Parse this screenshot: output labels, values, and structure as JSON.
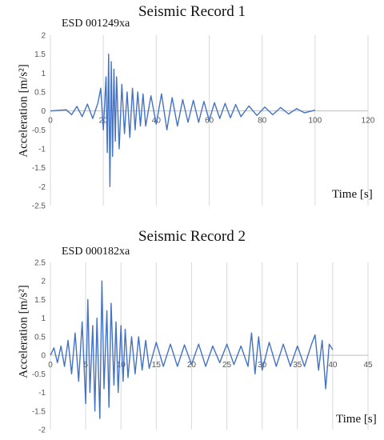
{
  "charts": [
    {
      "title": "Seismic Record 1",
      "code": "ESD 001249xa",
      "ylabel": "Acceleration [m/s²]",
      "xlabel": "Time [s]"
    },
    {
      "title": "Seismic Record 2",
      "code": "ESD 000182xa",
      "ylabel": "Acceleration [m/s²]",
      "xlabel": "Time [s]"
    }
  ],
  "colors": {
    "series": "#4472c4",
    "grid": "#d9d9d9",
    "axis": "#bfbfbf"
  },
  "chart_data": [
    {
      "type": "line",
      "title": "Seismic Record 1",
      "xlabel": "Time [s]",
      "ylabel": "Acceleration [m/s²]",
      "xlim": [
        0,
        120
      ],
      "ylim": [
        -2.5,
        2
      ],
      "xticks": [
        0,
        20,
        40,
        60,
        80,
        100,
        120
      ],
      "yticks": [
        -2.5,
        -2,
        -1.5,
        -1,
        -0.5,
        0,
        0.5,
        1,
        1.5,
        2
      ],
      "grid": "vertical",
      "series": [
        {
          "x": [
            0,
            6,
            8,
            10,
            12,
            14,
            16,
            18,
            19,
            20,
            21,
            21.5,
            22,
            22.5,
            23,
            23.5,
            24,
            24.5,
            25,
            26,
            27,
            28,
            29,
            30,
            31,
            32,
            33,
            34,
            35,
            36,
            38,
            40,
            42,
            44,
            46,
            48,
            50,
            52,
            54,
            56,
            58,
            60,
            62,
            64,
            66,
            68,
            70,
            72,
            75,
            78,
            81,
            84,
            87,
            90,
            93,
            96,
            100
          ],
          "y": [
            0,
            0.03,
            -0.1,
            0.12,
            -0.15,
            0.18,
            -0.2,
            0.22,
            0.6,
            -0.5,
            0.9,
            -1.1,
            1.5,
            -2.0,
            1.3,
            -1.2,
            1.1,
            -0.8,
            0.9,
            -1.0,
            0.7,
            -0.6,
            0.5,
            -0.7,
            0.6,
            -0.5,
            0.5,
            -0.4,
            0.45,
            -0.4,
            0.4,
            -0.35,
            0.45,
            -0.5,
            0.35,
            -0.4,
            0.3,
            -0.3,
            0.28,
            -0.3,
            0.25,
            -0.25,
            0.22,
            -0.2,
            0.2,
            -0.18,
            0.17,
            -0.15,
            0.13,
            -0.12,
            0.1,
            -0.1,
            0.09,
            -0.08,
            0.06,
            -0.05,
            0.02
          ]
        }
      ]
    },
    {
      "type": "line",
      "title": "Seismic Record 2",
      "xlabel": "Time [s]",
      "ylabel": "Acceleration [m/s²]",
      "xlim": [
        0,
        45
      ],
      "ylim": [
        -2,
        2.5
      ],
      "xticks": [
        0,
        5,
        10,
        15,
        20,
        25,
        30,
        35,
        40,
        45
      ],
      "yticks": [
        -2,
        -1.5,
        -1,
        -0.5,
        0,
        0.5,
        1,
        1.5,
        2,
        2.5
      ],
      "grid": "vertical",
      "series": [
        {
          "x": [
            0,
            0.5,
            1,
            1.5,
            2,
            2.5,
            3,
            3.5,
            4,
            4.5,
            5,
            5.3,
            5.6,
            6,
            6.3,
            6.6,
            7,
            7.3,
            7.6,
            8,
            8.3,
            8.6,
            9,
            9.3,
            9.6,
            10,
            10.3,
            10.6,
            11,
            11.5,
            12,
            12.5,
            13,
            13.5,
            14,
            15,
            16,
            17,
            18,
            19,
            20,
            21,
            22,
            23,
            24,
            25,
            26,
            27,
            28,
            28.5,
            29,
            29.5,
            30,
            31,
            32,
            33,
            34,
            35,
            36,
            37,
            37.5,
            38,
            38.5,
            39,
            39.5,
            40
          ],
          "y": [
            0,
            0.2,
            -0.2,
            0.25,
            -0.3,
            0.4,
            -0.5,
            0.6,
            -0.7,
            0.9,
            -1.3,
            1.5,
            -1.0,
            0.8,
            -1.5,
            1.0,
            -1.7,
            2.0,
            -0.9,
            1.2,
            -1.4,
            1.4,
            -0.8,
            0.9,
            -1.0,
            0.8,
            -0.7,
            0.7,
            -0.6,
            0.5,
            -0.5,
            0.5,
            -0.4,
            0.4,
            -0.35,
            0.35,
            -0.3,
            0.3,
            -0.3,
            0.28,
            -0.25,
            0.3,
            -0.3,
            0.25,
            -0.2,
            0.3,
            -0.25,
            0.25,
            -0.3,
            0.6,
            -0.5,
            0.5,
            -0.4,
            0.35,
            -0.3,
            0.3,
            -0.3,
            0.25,
            -0.3,
            0.3,
            0.55,
            -0.4,
            0.4,
            -0.9,
            0.3,
            0.15
          ]
        }
      ]
    }
  ]
}
